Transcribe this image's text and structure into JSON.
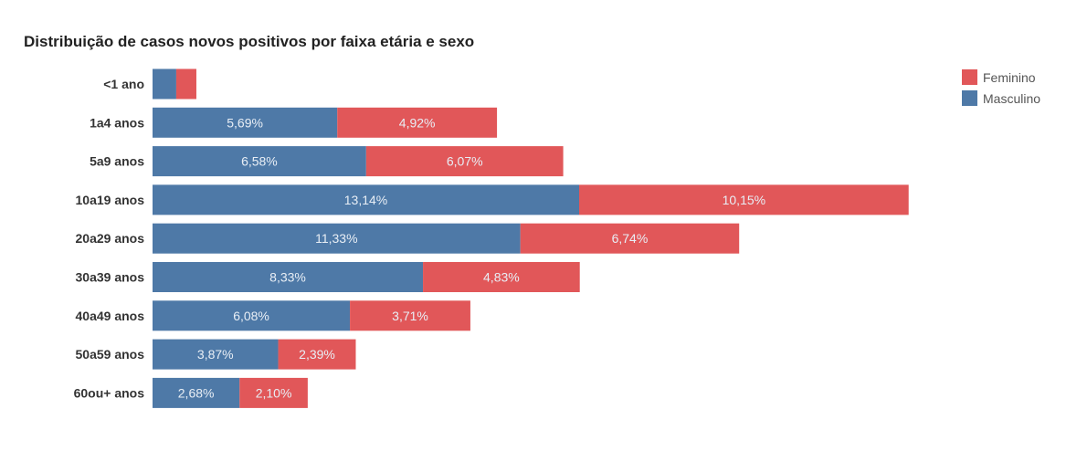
{
  "chart_data": {
    "type": "bar",
    "orientation": "horizontal",
    "stacked": true,
    "title": "Distribuição de casos novos positivos por faixa etária e sexo",
    "xlabel": "",
    "ylabel": "",
    "categories": [
      "<1 ano",
      "1a4 anos",
      "5a9 anos",
      "10a19 anos",
      "20a29 anos",
      "30a39 anos",
      "40a49 anos",
      "50a59 anos",
      "60ou+ anos"
    ],
    "series": [
      {
        "name": "Masculino",
        "color": "#4e79a7",
        "values": [
          0.73,
          5.69,
          6.58,
          13.14,
          11.33,
          8.33,
          6.08,
          3.87,
          2.68
        ],
        "labels": [
          null,
          "5,69%",
          "6,58%",
          "13,14%",
          "11,33%",
          "8,33%",
          "6,08%",
          "3,87%",
          "2,68%"
        ]
      },
      {
        "name": "Feminino",
        "color": "#e15759",
        "values": [
          0.62,
          4.92,
          6.07,
          10.15,
          6.74,
          4.83,
          3.71,
          2.39,
          2.1
        ],
        "labels": [
          null,
          "4,92%",
          "6,07%",
          "10,15%",
          "6,74%",
          "4,83%",
          "3,71%",
          "2,39%",
          "2,10%"
        ]
      }
    ],
    "legend_order": [
      "Feminino",
      "Masculino"
    ],
    "legend_position": "top-right",
    "grid": false,
    "xlim": [
      0,
      23.5
    ]
  }
}
